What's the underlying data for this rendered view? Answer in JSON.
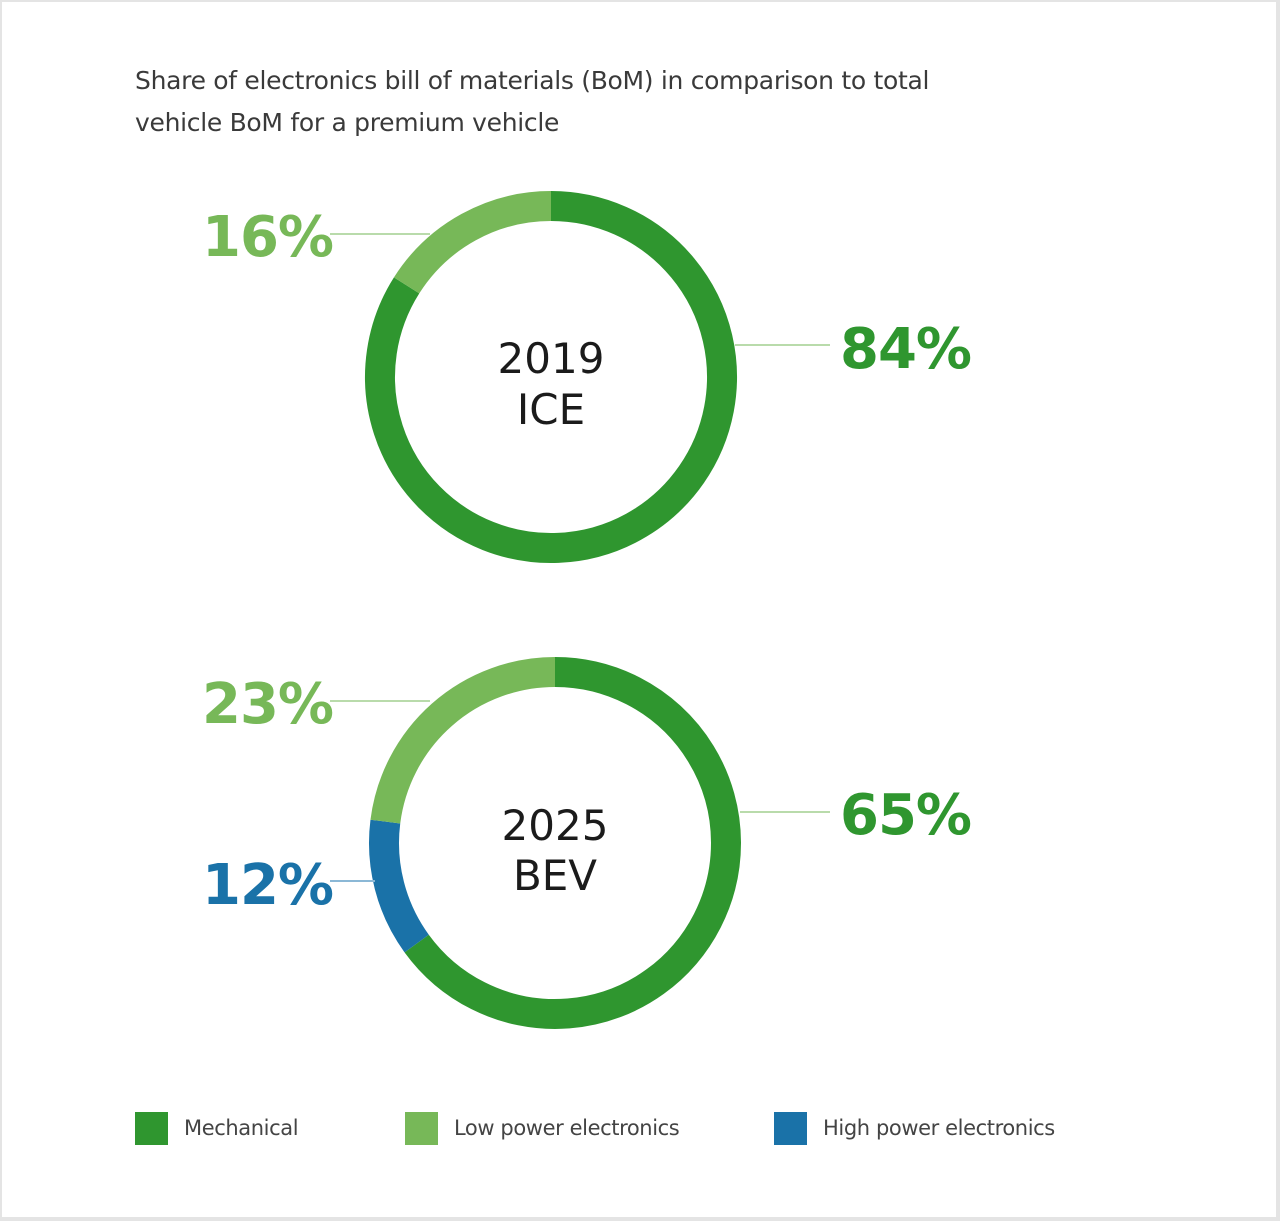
{
  "title": "Share of electronics bill of materials (BoM) in comparison to total vehicle BoM for a premium vehicle",
  "colors": {
    "mechanical": "#2f962f",
    "low_power": "#77b858",
    "high_power": "#1a72a8",
    "leader": "#b9dbab",
    "leader_blue": "#8bb8d6"
  },
  "chart_data": [
    {
      "type": "pie",
      "donut": true,
      "center_label": [
        "2019",
        "ICE"
      ],
      "slices": [
        {
          "name": "Mechanical",
          "value": 84,
          "label": "84%",
          "color": "#2f962f"
        },
        {
          "name": "Low power electronics",
          "value": 16,
          "label": "16%",
          "color": "#77b858"
        }
      ]
    },
    {
      "type": "pie",
      "donut": true,
      "center_label": [
        "2025",
        "BEV"
      ],
      "slices": [
        {
          "name": "Mechanical",
          "value": 65,
          "label": "65%",
          "color": "#2f962f"
        },
        {
          "name": "High power electronics",
          "value": 12,
          "label": "12%",
          "color": "#1a72a8"
        },
        {
          "name": "Low power electronics",
          "value": 23,
          "label": "23%",
          "color": "#77b858"
        }
      ]
    }
  ],
  "legend": [
    {
      "label": "Mechanical",
      "color": "#2f962f"
    },
    {
      "label": "Low power electronics",
      "color": "#77b858"
    },
    {
      "label": "High power electronics",
      "color": "#1a72a8"
    }
  ]
}
